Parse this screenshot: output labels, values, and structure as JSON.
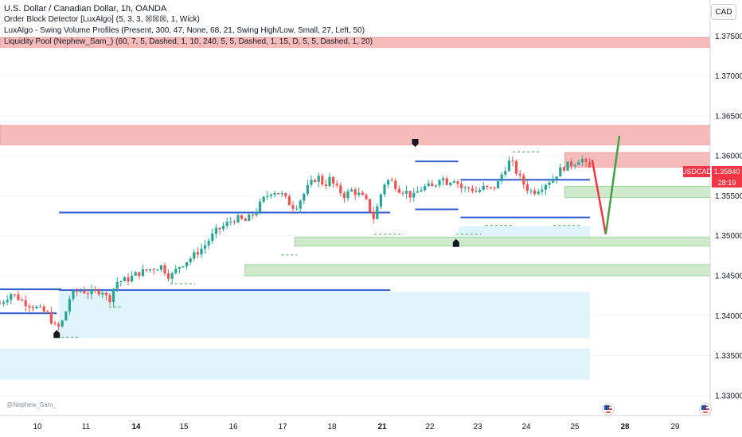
{
  "legend": {
    "title": "U.S. Dollar / Canadian Dollar, 1h, OANDA",
    "lines": [
      "Order Block Detector [LuxAlgo] (5, 3, 3, ☒☒☒, 1, Wick)",
      "LuxAlgo - Swing Volume Profiles (Present, 300, 47, None, 68, 21, Swing High/Low, Small, 27, Left, 50)",
      "Liquidity Pool (Nephew_Sam_) (60, 7, 5, Dashed, 1, 10, 240, 5, 5, Dashed, 1, 15, D, 5, 5, Dashed, 1, 20)"
    ]
  },
  "currency_button": "CAD",
  "watermark": "@Nephew_Sam_",
  "price_tag": {
    "symbol": "USDCAD",
    "price": "1.35840",
    "countdown": "28:19"
  },
  "icons": [
    "us-flag-icon",
    "us-flag-icon"
  ],
  "colors": {
    "up": "#26a69a",
    "down": "#ef5350",
    "level_line": "#2f5bd3",
    "supply_zone": "#f6bcbc",
    "demand_zone": "#cfeacb",
    "volume_profile": "#dff4fa",
    "price_tag": "#f23645"
  },
  "chart_data": {
    "type": "candlestick",
    "symbol": "USDCAD",
    "timeframe": "1h",
    "x_tick_labels": [
      "10",
      "11",
      "14",
      "15",
      "16",
      "17",
      "18",
      "21",
      "22",
      "23",
      "24",
      "25",
      "28",
      "29"
    ],
    "x_range_days": [
      9.3,
      23.7
    ],
    "y_tick_labels": [
      "1.37500",
      "1.37000",
      "1.36500",
      "1.36000",
      "1.35500",
      "1.35000",
      "1.34500",
      "1.34000",
      "1.33500",
      "1.33000"
    ],
    "ylim": [
      1.3275,
      1.3795
    ],
    "last_price": 1.3584,
    "path_points": [
      [
        9.3,
        1.3415
      ],
      [
        9.55,
        1.3428
      ],
      [
        9.8,
        1.3418
      ],
      [
        10.1,
        1.341
      ],
      [
        10.35,
        1.3402
      ],
      [
        10.55,
        1.3382
      ],
      [
        10.7,
        1.3395
      ],
      [
        10.85,
        1.3425
      ],
      [
        11.05,
        1.3432
      ],
      [
        11.3,
        1.3428
      ],
      [
        11.55,
        1.3432
      ],
      [
        11.7,
        1.3418
      ],
      [
        11.85,
        1.3442
      ],
      [
        12.1,
        1.3445
      ],
      [
        12.3,
        1.3452
      ],
      [
        12.6,
        1.3458
      ],
      [
        12.85,
        1.3462
      ],
      [
        13.05,
        1.3448
      ],
      [
        13.25,
        1.3462
      ],
      [
        13.5,
        1.3472
      ],
      [
        13.8,
        1.3487
      ],
      [
        14.05,
        1.3505
      ],
      [
        14.3,
        1.3515
      ],
      [
        14.5,
        1.3522
      ],
      [
        14.7,
        1.3518
      ],
      [
        14.9,
        1.3528
      ],
      [
        15.1,
        1.3545
      ],
      [
        15.3,
        1.3557
      ],
      [
        15.5,
        1.3552
      ],
      [
        15.65,
        1.3542
      ],
      [
        15.8,
        1.3535
      ],
      [
        15.95,
        1.3548
      ],
      [
        16.1,
        1.3562
      ],
      [
        16.3,
        1.3575
      ],
      [
        16.45,
        1.3562
      ],
      [
        16.55,
        1.3572
      ],
      [
        16.7,
        1.356
      ],
      [
        16.9,
        1.355
      ],
      [
        17.05,
        1.3557
      ],
      [
        17.2,
        1.3552
      ],
      [
        17.35,
        1.3545
      ],
      [
        17.55,
        1.352
      ],
      [
        17.65,
        1.3545
      ],
      [
        17.8,
        1.357
      ],
      [
        17.95,
        1.3567
      ],
      [
        18.1,
        1.3558
      ],
      [
        18.25,
        1.3555
      ],
      [
        18.4,
        1.3548
      ],
      [
        18.55,
        1.3558
      ],
      [
        18.7,
        1.3562
      ],
      [
        18.85,
        1.356
      ],
      [
        19.0,
        1.3575
      ],
      [
        19.15,
        1.3567
      ],
      [
        19.3,
        1.3572
      ],
      [
        19.5,
        1.3558
      ],
      [
        19.65,
        1.356
      ],
      [
        19.8,
        1.3555
      ],
      [
        19.95,
        1.356
      ],
      [
        20.1,
        1.3558
      ],
      [
        20.25,
        1.3563
      ],
      [
        20.4,
        1.3582
      ],
      [
        20.55,
        1.3595
      ],
      [
        20.65,
        1.3583
      ],
      [
        20.8,
        1.3568
      ],
      [
        20.95,
        1.3557
      ],
      [
        21.05,
        1.3555
      ],
      [
        21.2,
        1.356
      ],
      [
        21.35,
        1.3567
      ],
      [
        21.5,
        1.3572
      ],
      [
        21.6,
        1.358
      ],
      [
        21.7,
        1.3585
      ],
      [
        21.8,
        1.3588
      ],
      [
        21.9,
        1.359
      ],
      [
        22.0,
        1.3593
      ],
      [
        22.1,
        1.3598
      ],
      [
        22.15,
        1.3594
      ],
      [
        22.2,
        1.3589
      ],
      [
        22.28,
        1.3584
      ]
    ],
    "markers": [
      {
        "x": 10.55,
        "y": 1.3378,
        "shape": "arrow-up"
      },
      {
        "x": 18.45,
        "y": 1.3615,
        "shape": "arrow-down"
      },
      {
        "x": 19.35,
        "y": 1.3492,
        "shape": "arrow-up"
      }
    ],
    "horizontal_levels": [
      {
        "y": 1.3433,
        "x0": 9.3,
        "x1": 10.65
      },
      {
        "y": 1.3403,
        "x0": 9.3,
        "x1": 10.55
      },
      {
        "y": 1.3432,
        "x0": 10.6,
        "x1": 17.9
      },
      {
        "y": 1.3529,
        "x0": 10.6,
        "x1": 17.9
      },
      {
        "y": 1.3593,
        "x0": 18.45,
        "x1": 19.4
      },
      {
        "y": 1.3533,
        "x0": 18.45,
        "x1": 19.4
      },
      {
        "y": 1.357,
        "x0": 19.45,
        "x1": 22.3
      },
      {
        "y": 1.3523,
        "x0": 19.45,
        "x1": 22.3
      }
    ],
    "supply_zones": [
      {
        "y0": 1.3736,
        "y1": 1.3748
      },
      {
        "y0": 1.3614,
        "y1": 1.3638
      },
      {
        "y0": 1.3586,
        "y1": 1.3604,
        "x0": 21.75
      }
    ],
    "demand_zones": [
      {
        "y0": 1.3548,
        "y1": 1.3562,
        "x0": 21.75
      },
      {
        "y0": 1.3487,
        "y1": 1.3498,
        "x0": 15.8
      },
      {
        "y0": 1.345,
        "y1": 1.3464,
        "x0": 14.7
      }
    ],
    "volume_profile_zones": [
      {
        "y0": 1.3497,
        "y1": 1.3512,
        "x0": 19.4,
        "x1": 22.3
      },
      {
        "y0": 1.3372,
        "y1": 1.343,
        "x0": 10.6,
        "x1": 22.3
      },
      {
        "y0": 1.332,
        "y1": 1.3359,
        "x0": 9.3,
        "x1": 22.3
      }
    ],
    "liquidity_pools": [
      {
        "y": 1.3373,
        "x0": 10.55,
        "x1": 11.05
      },
      {
        "y": 1.3411,
        "x0": 11.7,
        "x1": 12.0
      },
      {
        "y": 1.344,
        "x0": 13.05,
        "x1": 13.6
      },
      {
        "y": 1.3476,
        "x0": 15.5,
        "x1": 15.85
      },
      {
        "y": 1.3502,
        "x0": 17.55,
        "x1": 18.2
      },
      {
        "y": 1.3502,
        "x0": 19.35,
        "x1": 19.9
      },
      {
        "y": 1.3513,
        "x0": 20.0,
        "x1": 20.6
      },
      {
        "y": 1.3513,
        "x0": 21.5,
        "x1": 22.1
      },
      {
        "y": 1.3605,
        "x0": 20.6,
        "x1": 21.2
      }
    ],
    "projection": [
      {
        "points": [
          [
            22.35,
            1.3595
          ],
          [
            22.65,
            1.3502
          ]
        ],
        "color": "#f23645"
      },
      {
        "points": [
          [
            22.65,
            1.3502
          ],
          [
            22.95,
            1.3625
          ]
        ],
        "color": "#43a047"
      }
    ]
  }
}
